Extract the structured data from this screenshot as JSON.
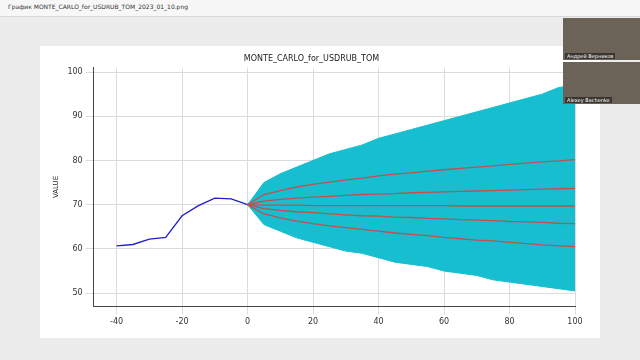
{
  "window": {
    "title": "График MONTE_CARLO_for_USDRUB_TOM_2023_01_10.png"
  },
  "participants": [
    "Андрей Верников",
    "Alexey Bachenko"
  ],
  "chart_data": {
    "type": "line",
    "title": "MONTE_CARLO_for_USDRUB_TOM",
    "y_label": "VALUE",
    "x": [
      -40,
      -35,
      -30,
      -25,
      -20,
      -15,
      -10,
      -5,
      0,
      5,
      10,
      15,
      20,
      25,
      30,
      35,
      40,
      45,
      50,
      55,
      60,
      65,
      70,
      75,
      80,
      85,
      90,
      95,
      100
    ],
    "series": [
      {
        "type": "band",
        "color": "#17becf",
        "high": [
          null,
          null,
          null,
          null,
          null,
          null,
          null,
          null,
          70,
          75,
          77,
          78.5,
          80,
          81.5,
          82.5,
          83.5,
          85,
          86,
          87,
          88,
          89,
          90,
          91,
          92,
          93,
          94,
          95,
          96.5,
          97
        ],
        "low": [
          null,
          null,
          null,
          null,
          null,
          null,
          null,
          null,
          70,
          65.5,
          64,
          62.5,
          61.5,
          60.5,
          59.5,
          59,
          58,
          57,
          56.5,
          56,
          55,
          54.5,
          54,
          53,
          52.5,
          52,
          51.5,
          51,
          50.5
        ]
      },
      {
        "color": "#1f1fc8",
        "values": [
          60.7,
          61.0,
          62.2,
          62.6,
          67.5,
          69.8,
          71.5,
          71.3,
          70,
          null,
          null,
          null,
          null,
          null,
          null,
          null,
          null,
          null,
          null,
          null,
          null,
          null,
          null,
          null,
          null,
          null,
          null,
          null,
          null
        ]
      },
      {
        "color": "#c0504d",
        "values": [
          null,
          null,
          null,
          null,
          null,
          null,
          null,
          null,
          70,
          72.3,
          73.2,
          74,
          74.6,
          75.1,
          75.6,
          76,
          76.5,
          76.9,
          77.2,
          77.6,
          77.9,
          78.2,
          78.5,
          78.8,
          79.1,
          79.4,
          79.7,
          79.9,
          80.2
        ]
      },
      {
        "color": "#c0504d",
        "values": [
          null,
          null,
          null,
          null,
          null,
          null,
          null,
          null,
          70,
          70.8,
          71.2,
          71.5,
          71.7,
          71.9,
          72.1,
          72.3,
          72.4,
          72.5,
          72.7,
          72.8,
          72.9,
          73,
          73.1,
          73.2,
          73.3,
          73.4,
          73.5,
          73.6,
          73.7
        ]
      },
      {
        "color": "#c0504d",
        "values": [
          null,
          null,
          null,
          null,
          null,
          null,
          null,
          null,
          70,
          69.9,
          69.9,
          69.9,
          69.8,
          69.8,
          69.8,
          69.8,
          69.8,
          69.8,
          69.8,
          69.8,
          69.8,
          69.7,
          69.7,
          69.7,
          69.7,
          69.7,
          69.7,
          69.7,
          69.7
        ]
      },
      {
        "color": "#c0504d",
        "values": [
          null,
          null,
          null,
          null,
          null,
          null,
          null,
          null,
          70,
          69.1,
          68.7,
          68.4,
          68.2,
          67.9,
          67.7,
          67.5,
          67.4,
          67.2,
          67.1,
          66.9,
          66.8,
          66.6,
          66.5,
          66.4,
          66.2,
          66.1,
          66,
          65.8,
          65.7
        ]
      },
      {
        "color": "#c0504d",
        "values": [
          null,
          null,
          null,
          null,
          null,
          null,
          null,
          null,
          70,
          67.9,
          67,
          66.3,
          65.7,
          65.2,
          64.8,
          64.4,
          64,
          63.6,
          63.3,
          63,
          62.6,
          62.3,
          62,
          61.8,
          61.5,
          61.2,
          60.9,
          60.7,
          60.5
        ]
      }
    ],
    "xlim": [
      -47,
      100
    ],
    "xticks": [
      -40,
      -20,
      0,
      20,
      40,
      60,
      80,
      100
    ],
    "ylim": [
      47,
      101
    ],
    "yticks": [
      50,
      60,
      70,
      80,
      90,
      100
    ],
    "grid": true
  }
}
